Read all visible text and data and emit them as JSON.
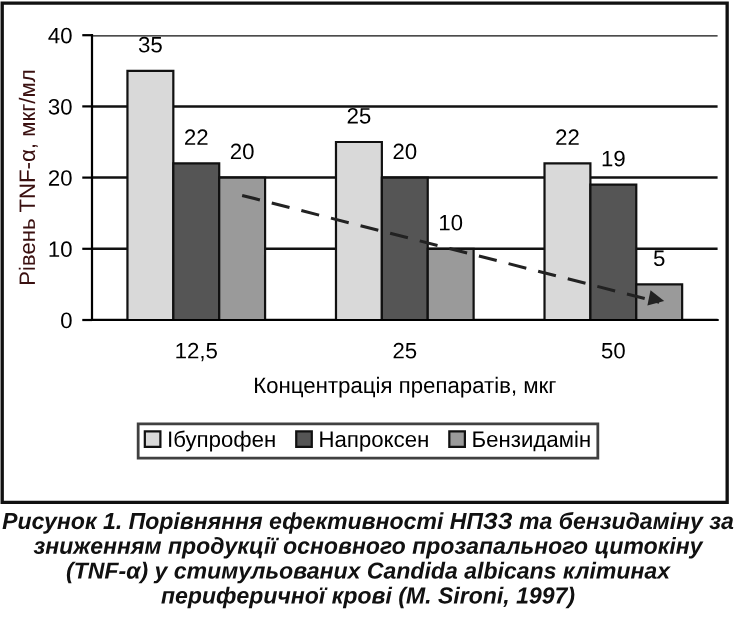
{
  "chart_data": {
    "type": "bar",
    "xlabel": "Концентрація препаратів, мкг",
    "ylabel": "Рівень TNF-α, мкг/мл",
    "categories": [
      "12,5",
      "25",
      "50"
    ],
    "series": [
      {
        "name": "Ібупрофен",
        "color": "#d9d9d9",
        "values": [
          35,
          25,
          22
        ],
        "value_labels": [
          "35",
          "25",
          "22"
        ]
      },
      {
        "name": "Напроксен",
        "color": "#555555",
        "values": [
          22,
          20,
          19
        ],
        "value_labels": [
          "22",
          "20",
          "19"
        ]
      },
      {
        "name": "Бензидамін",
        "color": "#9a9a9a",
        "values": [
          20,
          10,
          5
        ],
        "value_labels": [
          "20",
          "10",
          "5"
        ]
      },
      {
        "type": "line",
        "color": "#222222",
        "line_style": "dashed",
        "x": [
          "12,5",
          "50"
        ],
        "values": [
          17.5,
          2.5
        ]
      }
    ],
    "ylim": [
      0,
      40
    ],
    "yticks": [
      0,
      10,
      20,
      30,
      40
    ],
    "grid": "y",
    "legend": "bottom",
    "annotations": [
      "Рисунок 1. Порівняння ефективності НПЗЗ та бензидаміну за зниженням продукції основного прозапального цитокіну (TNF-α) у стимульованих Candida albicans клітинах периферичної крові (M. Sironi, 1997)"
    ]
  }
}
